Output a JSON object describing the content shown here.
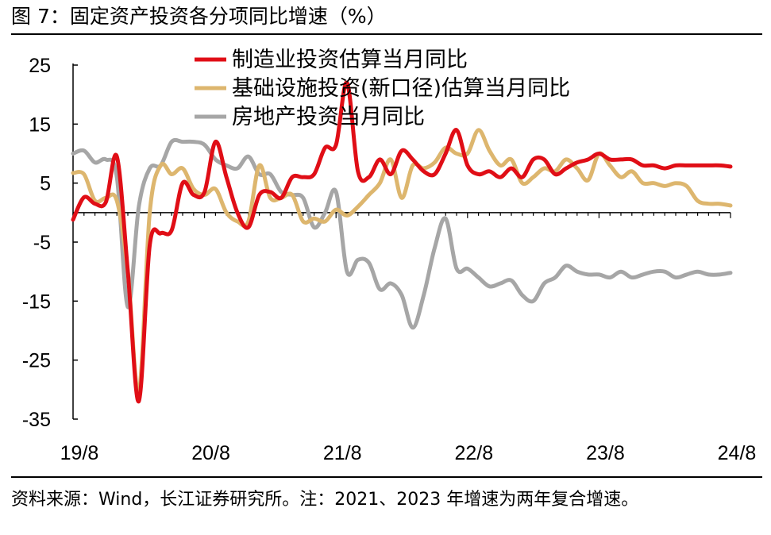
{
  "figure": {
    "title": "图 7：固定资产投资各分项同比增速（%）",
    "source": "资料来源：Wind，长江证券研究所。注：2021、2023 年增速为两年复合增速。"
  },
  "chart_data": {
    "type": "line",
    "title": "",
    "xlabel": "",
    "ylabel": "",
    "ylim": [
      -35,
      25
    ],
    "yticks": [
      25,
      15,
      5,
      -5,
      -15,
      -25,
      -35
    ],
    "xticks": [
      "19/8",
      "20/8",
      "21/8",
      "22/8",
      "23/8",
      "24/8"
    ],
    "grid": false,
    "legend": "top-center",
    "series": [
      {
        "name": "制造业投资估算当月同比",
        "color": "#e00e16",
        "x": [
          "19/8",
          "19/9",
          "19/10",
          "19/11",
          "19/12",
          "20/1",
          "20/2",
          "20/3",
          "20/4",
          "20/5",
          "20/6",
          "20/7",
          "20/8",
          "20/9",
          "20/10",
          "20/11",
          "20/12",
          "21/1",
          "21/2",
          "21/3",
          "21/4",
          "21/5",
          "21/6",
          "21/7",
          "21/8",
          "21/9",
          "21/10",
          "21/11",
          "21/12",
          "22/1",
          "22/2",
          "22/3",
          "22/4",
          "22/5",
          "22/6",
          "22/7",
          "22/8",
          "22/9",
          "22/10",
          "22/11",
          "22/12",
          "23/1",
          "23/2",
          "23/3",
          "23/4",
          "23/5",
          "23/6",
          "23/7",
          "23/8",
          "23/9",
          "23/10",
          "23/11",
          "23/12",
          "24/1",
          "24/2",
          "24/3",
          "24/4",
          "24/5",
          "24/6",
          "24/7",
          "24/8"
        ],
        "values": [
          -1.2,
          2.6,
          1.5,
          1.8,
          9.5,
          -10,
          -32,
          -5.5,
          -3.5,
          -3,
          5,
          3,
          3.5,
          12,
          6,
          0,
          -2.5,
          3,
          3.5,
          2.5,
          6,
          6,
          6.5,
          11,
          11.5,
          22,
          7,
          6,
          9,
          6.5,
          10.5,
          9,
          7,
          6.5,
          10,
          14,
          8,
          6.5,
          7,
          6,
          7.5,
          6,
          9,
          9,
          6.5,
          7.5,
          8.5,
          9,
          10,
          9,
          9,
          9,
          8,
          8,
          7.5,
          8,
          8,
          8,
          8,
          8,
          7.8
        ]
      },
      {
        "name": "基础设施投资(新口径)估算当月同比",
        "color": "#ddb66e",
        "x": [
          "19/8",
          "19/9",
          "19/10",
          "19/11",
          "19/12",
          "20/1",
          "20/2",
          "20/3",
          "20/4",
          "20/5",
          "20/6",
          "20/7",
          "20/8",
          "20/9",
          "20/10",
          "20/11",
          "20/12",
          "21/1",
          "21/2",
          "21/3",
          "21/4",
          "21/5",
          "21/6",
          "21/7",
          "21/8",
          "21/9",
          "21/10",
          "21/11",
          "21/12",
          "22/1",
          "22/2",
          "22/3",
          "22/4",
          "22/5",
          "22/6",
          "22/7",
          "22/8",
          "22/9",
          "22/10",
          "22/11",
          "22/12",
          "23/1",
          "23/2",
          "23/3",
          "23/4",
          "23/5",
          "23/6",
          "23/7",
          "23/8",
          "23/9",
          "23/10",
          "23/11",
          "23/12",
          "24/1",
          "24/2",
          "24/3",
          "24/4",
          "24/5",
          "24/6",
          "24/7",
          "24/8"
        ],
        "values": [
          6.7,
          6.5,
          2,
          2.5,
          2,
          -10,
          -30.5,
          0,
          8,
          6.5,
          7.5,
          4,
          3,
          4,
          0,
          -1.5,
          -1.5,
          8,
          2.5,
          2.5,
          3,
          -1.5,
          -1,
          -1.5,
          0.5,
          -0.5,
          1,
          3,
          5,
          9,
          2.5,
          8,
          7.5,
          8.5,
          11,
          10,
          10,
          14,
          10.5,
          8,
          9,
          5,
          6,
          7.5,
          7,
          9,
          7.5,
          5.5,
          10,
          8,
          6,
          7,
          5,
          5,
          4.5,
          5,
          4.5,
          2,
          1.5,
          1.5,
          1.2
        ]
      },
      {
        "name": "房地产投资当月同比",
        "color": "#a6a6a6",
        "x": [
          "19/8",
          "19/9",
          "19/10",
          "19/11",
          "19/12",
          "20/1",
          "20/2",
          "20/3",
          "20/4",
          "20/5",
          "20/6",
          "20/7",
          "20/8",
          "20/9",
          "20/10",
          "20/11",
          "20/12",
          "21/1",
          "21/2",
          "21/3",
          "21/4",
          "21/5",
          "21/6",
          "21/7",
          "21/8",
          "21/9",
          "21/10",
          "21/11",
          "21/12",
          "22/1",
          "22/2",
          "22/3",
          "22/4",
          "22/5",
          "22/6",
          "22/7",
          "22/8",
          "22/9",
          "22/10",
          "22/11",
          "22/12",
          "23/1",
          "23/2",
          "23/3",
          "23/4",
          "23/5",
          "23/6",
          "23/7",
          "23/8",
          "23/9",
          "23/10",
          "23/11",
          "23/12",
          "24/1",
          "24/2",
          "24/3",
          "24/4",
          "24/5",
          "24/6",
          "24/7",
          "24/8"
        ],
        "values": [
          10,
          10.5,
          8.5,
          9,
          6,
          -16,
          1,
          7.5,
          8,
          12,
          12,
          12,
          11.5,
          9,
          8,
          7.5,
          9.5,
          6.5,
          6.5,
          3.5,
          3,
          2.5,
          -2.5,
          0,
          3.5,
          -10,
          -8,
          -8.5,
          -13,
          -12,
          -14,
          -19.5,
          -14,
          -6,
          -1,
          -9.5,
          -9.5,
          -11,
          -12.5,
          -12,
          -11.5,
          -14,
          -15,
          -12,
          -11,
          -9,
          -10,
          -10.5,
          -10.5,
          -11,
          -10,
          -11,
          -10.5,
          -10,
          -10,
          -11,
          -10.5,
          -10,
          -10.5,
          -10.5,
          -10.2
        ]
      }
    ]
  }
}
